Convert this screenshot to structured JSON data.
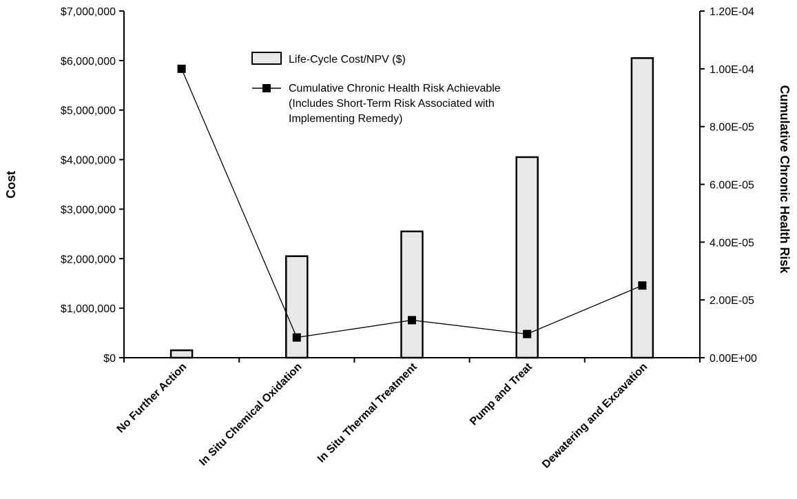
{
  "chart_data": {
    "type": "bar",
    "categories": [
      "No Further Action",
      "In Situ Chemical Oxidation",
      "In Situ Thermal Treatment",
      "Pump and Treat",
      "Dewatering and Excavation"
    ],
    "series": [
      {
        "name": "Life-Cycle Cost/NPV ($)",
        "type": "bar",
        "axis": "left",
        "values": [
          150000,
          2050000,
          2550000,
          4050000,
          6050000
        ]
      },
      {
        "name": "Cumulative Chronic Health Risk Achievable (Includes Short-Term Risk Associated with Implementing Remedy)",
        "name_lines": [
          "Cumulative Chronic Health Risk Achievable",
          "(Includes Short-Term Risk Associated with",
          "Implementing Remedy)"
        ],
        "type": "line",
        "axis": "right",
        "values": [
          0.0001,
          7e-06,
          1.3e-05,
          8.2e-06,
          2.5e-05
        ]
      }
    ],
    "ylabel": "Cost",
    "y2label": "Cumulative Chronic Health Risk",
    "ylim": [
      0,
      7000000
    ],
    "y2lim": [
      0,
      0.00012
    ],
    "yticks": [
      "$0",
      "$1,000,000",
      "$2,000,000",
      "$3,000,000",
      "$4,000,000",
      "$5,000,000",
      "$6,000,000",
      "$7,000,000"
    ],
    "y2ticks": [
      "0.00E+00",
      "2.00E-05",
      "4.00E-05",
      "6.00E-05",
      "8.00E-05",
      "1.00E-04",
      "1.20E-04"
    ],
    "grid": false,
    "legend_position": "top-center",
    "colors": {
      "bar_fill": "#e8e8e8",
      "bar_stroke": "#000000",
      "line": "#000000",
      "marker": "#000000"
    }
  }
}
